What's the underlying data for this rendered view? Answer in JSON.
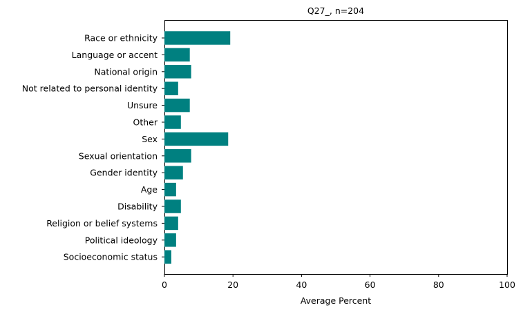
{
  "chart_data": {
    "type": "bar",
    "orientation": "horizontal",
    "title": "Q27_, n=204",
    "xlabel": "Average Percent",
    "ylabel": "",
    "xlim": [
      0,
      100
    ],
    "xticks": [
      0,
      20,
      40,
      60,
      80,
      100
    ],
    "grid": false,
    "bar_color": "#008080",
    "categories": [
      "Race or ethnicity",
      "Language or accent",
      "National origin",
      "Not related to personal identity",
      "Unsure",
      "Other",
      "Sex",
      "Sexual orientation",
      "Gender identity",
      "Age",
      "Disability",
      "Religion or belief systems",
      "Political ideology",
      "Socioeconomic status"
    ],
    "values": [
      19.2,
      7.4,
      7.8,
      4.0,
      7.4,
      4.8,
      18.6,
      7.8,
      5.4,
      3.4,
      4.8,
      4.0,
      3.4,
      2.0
    ]
  }
}
